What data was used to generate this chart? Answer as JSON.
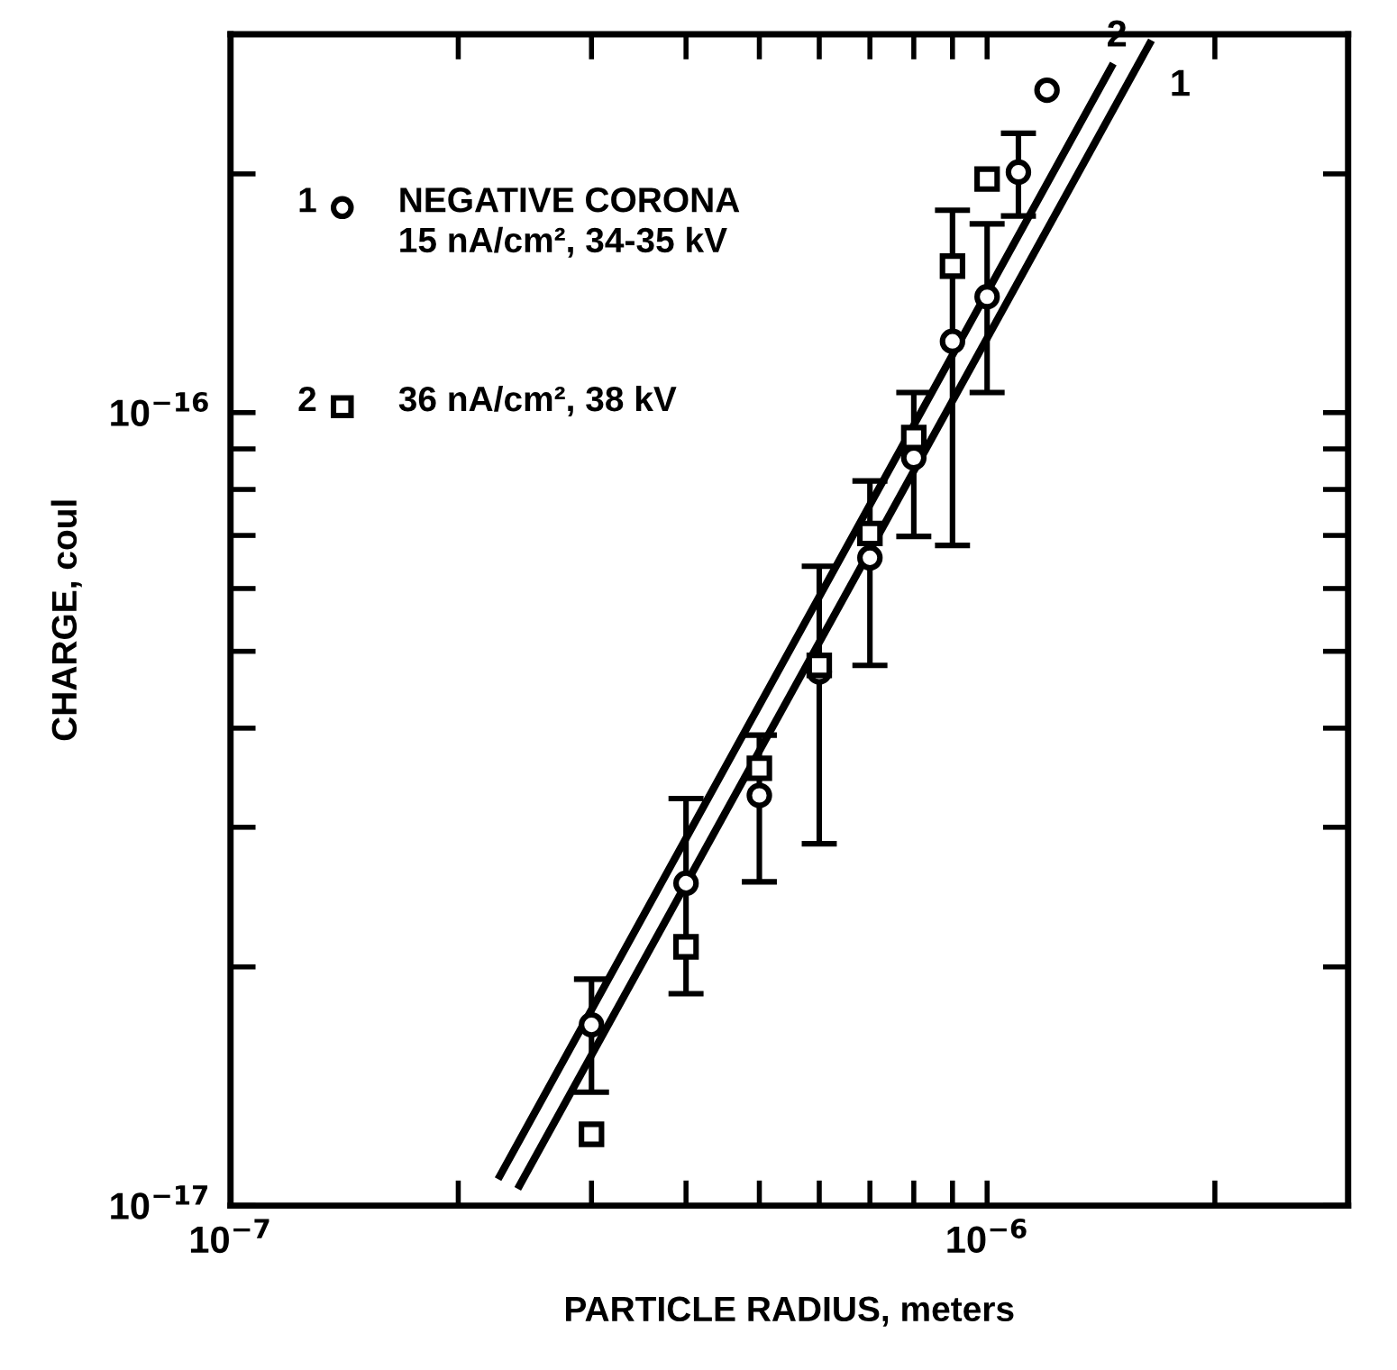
{
  "chart_data": {
    "type": "scatter",
    "xlabel": "PARTICLE RADIUS, meters",
    "ylabel": "CHARGE, coul",
    "log": "xy",
    "grid": false,
    "legend": "top left",
    "xlim": [
      1e-07,
      3e-06
    ],
    "ylim": [
      1e-17,
      3e-16
    ],
    "xticks": [
      {
        "value": 1e-07,
        "label": "10$^{−7}$"
      },
      {
        "value": 2e-07,
        "label": null
      },
      {
        "value": 3e-07,
        "label": null
      },
      {
        "value": 4e-07,
        "label": null
      },
      {
        "value": 5e-07,
        "label": null
      },
      {
        "value": 6e-07,
        "label": null
      },
      {
        "value": 7e-07,
        "label": null
      },
      {
        "value": 8e-07,
        "label": null
      },
      {
        "value": 9e-07,
        "label": null
      },
      {
        "value": 1e-06,
        "label": "10$^{−6}$"
      },
      {
        "value": 2e-06,
        "label": null
      }
    ],
    "yticks": [
      {
        "value": 1e-17,
        "label": "10$^{−17}$"
      },
      {
        "value": 2e-17,
        "label": null
      },
      {
        "value": 3e-17,
        "label": null
      },
      {
        "value": 4e-17,
        "label": null
      },
      {
        "value": 5e-17,
        "label": null
      },
      {
        "value": 6e-17,
        "label": null
      },
      {
        "value": 7e-17,
        "label": null
      },
      {
        "value": 8e-17,
        "label": null
      },
      {
        "value": 9e-17,
        "label": null
      },
      {
        "value": 1e-16,
        "label": "10$^{−16}$"
      },
      {
        "value": 2e-16,
        "label": null
      }
    ],
    "series": [
      {
        "name": "NEGATIVE CORONA\n15 nA/cm², 34-35 kV",
        "color": "#000000",
        "marker": "circle",
        "x": [
          3e-07,
          4e-07,
          5e-07,
          6e-07,
          7e-07,
          8e-07,
          9e-07,
          1e-06,
          1.1e-06,
          1.2e-06
        ],
        "values": [
          1.69e-17,
          2.55e-17,
          3.29e-17,
          4.71e-17,
          6.56e-17,
          8.77e-17,
          1.23e-16,
          1.4e-16,
          2.01e-16,
          2.55e-16
        ],
        "errors": [
          [
            1.39e-17,
            1.93e-17
          ],
          [
            1.85e-17,
            3.26e-17
          ],
          [
            2.56e-17,
            3.92e-17
          ],
          [
            2.86e-17,
            6.4e-17
          ],
          [
            4.8e-17,
            8.2e-17
          ],
          [
            6.98e-17,
            1.06e-16
          ],
          [
            6.8e-17,
            1.8e-16
          ],
          [
            1.06e-16,
            1.73e-16
          ],
          [
            1.77e-16,
            2.25e-16
          ],
          null
        ]
      },
      {
        "name": "36 nA/cm², 38 kV",
        "color": "#000000",
        "marker": "square",
        "x": [
          3e-07,
          4e-07,
          5e-07,
          6e-07,
          7e-07,
          8e-07,
          9e-07,
          1e-06
        ],
        "values": [
          1.23e-17,
          2.12e-17,
          3.56e-17,
          4.8e-17,
          7.04e-17,
          9.3e-17,
          1.53e-16,
          1.97e-16
        ]
      },
      {
        "type": "line",
        "name": "1",
        "color": "#000000",
        "line_style": "solid",
        "x": [
          2.41e-07,
          1.64e-06
        ],
        "values": [
          1.06e-17,
          2.92e-16
        ]
      },
      {
        "type": "line",
        "name": "2",
        "color": "#000000",
        "line_style": "solid",
        "x": [
          2.27e-07,
          1.46e-06
        ],
        "values": [
          1.09e-17,
          2.73e-16
        ]
      }
    ]
  }
}
